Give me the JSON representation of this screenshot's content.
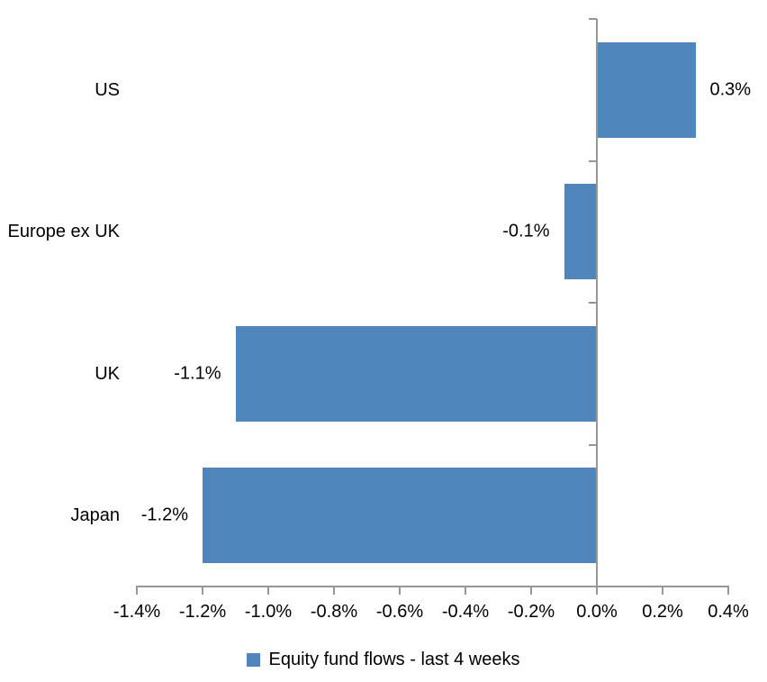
{
  "chart_data": {
    "type": "bar",
    "orientation": "horizontal",
    "title": "",
    "xlabel": "",
    "ylabel": "",
    "categories": [
      "US",
      "Europe ex UK",
      "UK",
      "Japan"
    ],
    "series": [
      {
        "name": "Equity fund flows - last 4 weeks",
        "values": [
          0.3,
          -0.1,
          -1.1,
          -1.2
        ],
        "value_labels": [
          "0.3%",
          "-0.1%",
          "-1.1%",
          "-1.2%"
        ]
      }
    ],
    "xlim": [
      -1.4,
      0.4
    ],
    "x_tick_step": 0.2,
    "x_tick_labels": [
      "-1.4%",
      "-1.2%",
      "-1.0%",
      "-0.8%",
      "-0.6%",
      "-0.4%",
      "-0.2%",
      "0.0%",
      "0.2%",
      "0.4%"
    ],
    "grid": false,
    "legend_position": "bottom"
  },
  "legend": {
    "label": "Equity fund flows - last 4 weeks"
  },
  "colors": {
    "bar": "#4E86BC",
    "axis": "#969696",
    "text": "#000000"
  }
}
